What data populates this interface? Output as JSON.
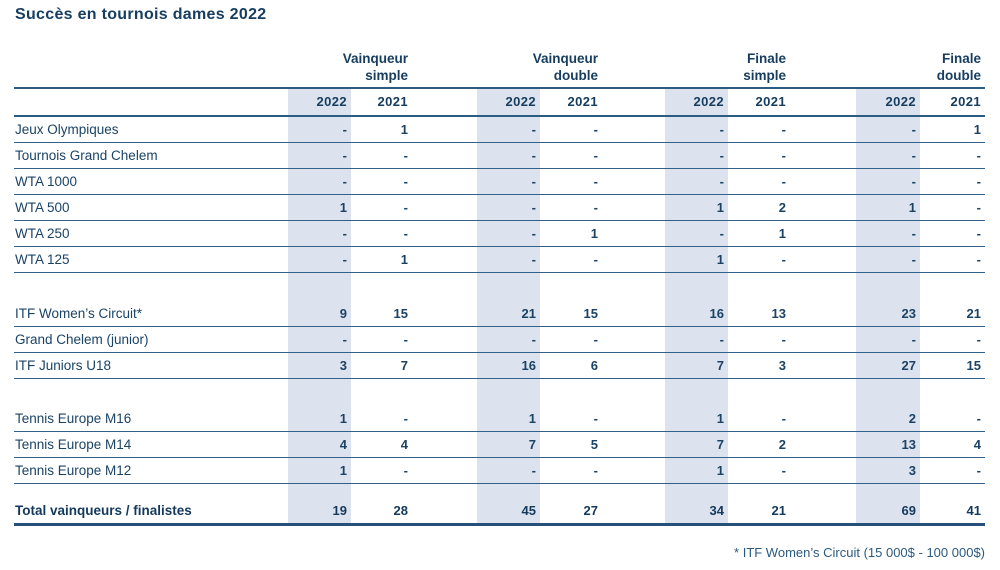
{
  "title": "Succès en tournois dames 2022",
  "footnote": "* ITF Women’s Circuit (15 000$ - 100 000$)",
  "colors": {
    "text_navy": "#1b4365",
    "rule_blue": "#2d5c82",
    "band_2022": "#dde3ee",
    "background": "#ffffff"
  },
  "table": {
    "groups": [
      {
        "line1": "Vainqueur",
        "line2": "simple"
      },
      {
        "line1": "Vainqueur",
        "line2": "double"
      },
      {
        "line1": "Finale",
        "line2": "simple"
      },
      {
        "line1": "Finale",
        "line2": "double"
      }
    ],
    "years": [
      "2022",
      "2021"
    ],
    "column_order": [
      "Vainqueur simple 2022",
      "Vainqueur simple 2021",
      "Vainqueur double 2022",
      "Vainqueur double 2021",
      "Finale simple 2022",
      "Finale simple 2021",
      "Finale double 2022",
      "Finale double 2021"
    ],
    "rows": [
      {
        "label": "Jeux Olympiques",
        "values": [
          "-",
          "1",
          "-",
          "-",
          "-",
          "-",
          "-",
          "1"
        ]
      },
      {
        "label": "Tournois Grand Chelem",
        "values": [
          "-",
          "-",
          "-",
          "-",
          "-",
          "-",
          "-",
          "-"
        ]
      },
      {
        "label": "WTA 1000",
        "values": [
          "-",
          "-",
          "-",
          "-",
          "-",
          "-",
          "-",
          "-"
        ]
      },
      {
        "label": "WTA 500",
        "values": [
          "1",
          "-",
          "-",
          "-",
          "1",
          "2",
          "1",
          "-"
        ]
      },
      {
        "label": "WTA 250",
        "values": [
          "-",
          "-",
          "-",
          "1",
          "-",
          "1",
          "-",
          "-"
        ]
      },
      {
        "label": "WTA 125",
        "values": [
          "-",
          "1",
          "-",
          "-",
          "1",
          "-",
          "-",
          "-"
        ]
      },
      {
        "spacer": "lg"
      },
      {
        "label": "ITF Women’s Circuit*",
        "values": [
          "9",
          "15",
          "21",
          "15",
          "16",
          "13",
          "23",
          "21"
        ]
      },
      {
        "label": "Grand Chelem (junior)",
        "values": [
          "-",
          "-",
          "-",
          "-",
          "-",
          "-",
          "-",
          "-"
        ]
      },
      {
        "label": "ITF Juniors U18",
        "values": [
          "3",
          "7",
          "16",
          "6",
          "7",
          "3",
          "27",
          "15"
        ]
      },
      {
        "spacer": "md"
      },
      {
        "label": "Tennis Europe M16",
        "values": [
          "1",
          "-",
          "1",
          "-",
          "1",
          "-",
          "2",
          "-"
        ]
      },
      {
        "label": "Tennis Europe M14",
        "values": [
          "4",
          "4",
          "7",
          "5",
          "7",
          "2",
          "13",
          "4"
        ]
      },
      {
        "label": "Tennis Europe M12",
        "values": [
          "1",
          "-",
          "-",
          "-",
          "1",
          "-",
          "3",
          "-"
        ]
      },
      {
        "spacer": "sm"
      },
      {
        "label": "Total vainqueurs / finalistes",
        "values": [
          "19",
          "28",
          "45",
          "27",
          "34",
          "21",
          "69",
          "41"
        ],
        "bold": true
      }
    ]
  }
}
